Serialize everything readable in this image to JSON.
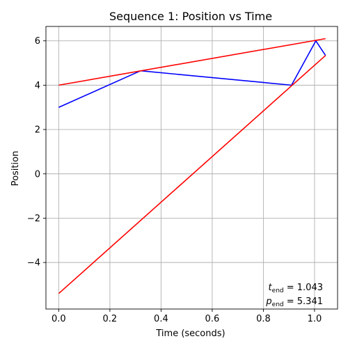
{
  "chart_data": {
    "type": "line",
    "title": "Sequence 1: Position vs Time",
    "xlabel": "Time (seconds)",
    "ylabel": "Position",
    "xlim": [
      -0.05,
      1.09
    ],
    "ylim": [
      -6.1,
      6.65
    ],
    "grid": true,
    "x_ticks": [
      0.0,
      0.2,
      0.4,
      0.6,
      0.8,
      1.0
    ],
    "x_tick_labels": [
      "0.0",
      "0.2",
      "0.4",
      "0.6",
      "0.8",
      "1.0"
    ],
    "y_ticks": [
      -4,
      -2,
      0,
      2,
      4,
      6
    ],
    "y_tick_labels": [
      "−4",
      "−2",
      "0",
      "2",
      "4",
      "6"
    ],
    "series": [
      {
        "color": "#0000ff",
        "x": [
          0.0,
          0.32,
          0.91,
          1.005,
          1.043
        ],
        "y": [
          3.0,
          4.65,
          4.0,
          6.0,
          5.341
        ]
      },
      {
        "color": "#ff0000",
        "x": [
          0.0,
          1.043
        ],
        "y": [
          4.0,
          6.1
        ]
      },
      {
        "color": "#ff0000",
        "x": [
          0.0,
          1.043
        ],
        "y": [
          -5.4,
          5.341
        ]
      }
    ],
    "annotations": {
      "t_end_label": "t",
      "t_end_sub": "end",
      "t_end_value": " = 1.043",
      "p_end_label": "p",
      "p_end_sub": "end",
      "p_end_value": " = 5.341"
    }
  }
}
